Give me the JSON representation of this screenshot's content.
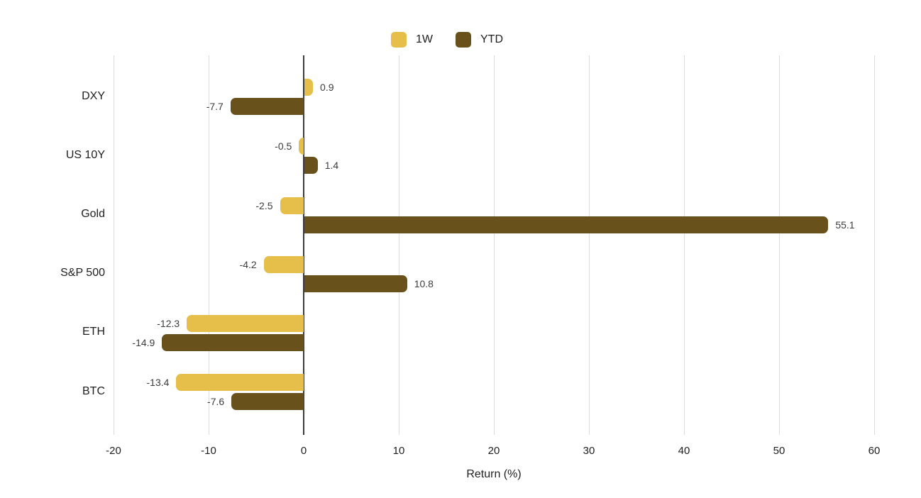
{
  "chart_data": {
    "type": "bar",
    "orientation": "horizontal",
    "title": "",
    "categories": [
      "DXY",
      "US 10Y",
      "Gold",
      "S&P 500",
      "ETH",
      "BTC"
    ],
    "series": [
      {
        "name": "1W",
        "color": "#E6BE4A",
        "values": [
          0.9,
          -0.5,
          -2.5,
          -4.2,
          -12.3,
          -13.4
        ]
      },
      {
        "name": "YTD",
        "color": "#68511B",
        "values": [
          -7.7,
          1.4,
          55.1,
          10.8,
          -14.9,
          -7.6
        ]
      }
    ],
    "value_labels": [
      "0.9",
      "-7.7",
      "-0.5",
      "1.4",
      "-2.5",
      "55.1",
      "-4.2",
      "10.8",
      "-12.3",
      "-14.9",
      "-13.4",
      "-7.6"
    ],
    "xlabel": "Return (%)",
    "ylabel": "",
    "xlim": [
      -20,
      60
    ],
    "xticks": [
      -20,
      -10,
      0,
      10,
      20,
      30,
      40,
      50,
      60
    ],
    "grid": true,
    "legend_position": "top-center",
    "value_label_decimals": 1
  },
  "colors": {
    "background": "#FFFFFF",
    "gridline": "#DCDCDC",
    "zero_line": "#3B3B3B",
    "axis_text": "#1E1E1E",
    "value_label_text": "#3C3C3C"
  }
}
